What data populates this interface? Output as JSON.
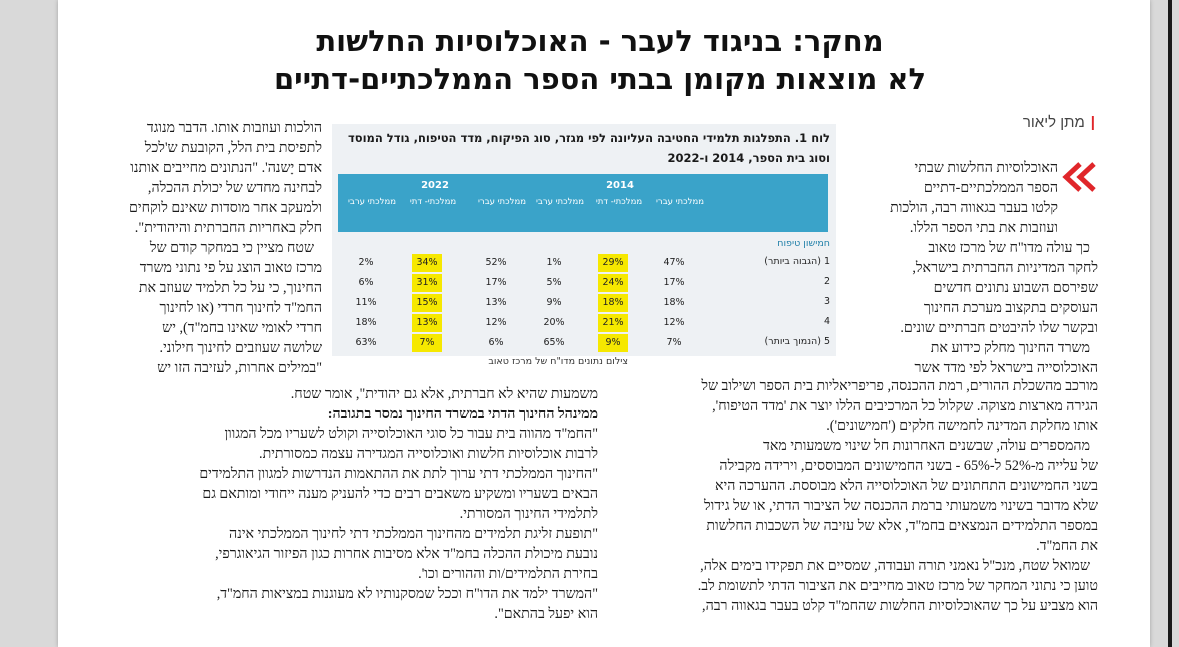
{
  "headline": {
    "line1": "מחקר: בניגוד לעבר - האוכלוסיות החלשות",
    "line2": "לא מוצאות מקומן בבתי הספר הממלכתיים-דתיים"
  },
  "byline": "מתן ליאור",
  "colors": {
    "accent": "#e0262a",
    "table_header": "#3aa3c9",
    "highlight": "#f6e800",
    "table_bg": "#eef1f4"
  },
  "right_column": [
    "האוכלוסיות החלשות שבתי",
    "הספר הממלכתיים-דתיים",
    "קלטו בעבר בגאווה רבה, הולכות",
    "ועוזבות את בתי הספר הללו.",
    "כך עולה מדו\"ח של מרכז טאוב",
    "לחקר המדיניות החברתית בישראל,",
    "שפירסם השבוע נתונים חדשים",
    "העוסקים בתקצוב מערכת החינוך",
    "ובקשר שלו להיבטים חברתיים שונים.",
    "משרד החינוך מחלק כידוע את",
    "האוכלוסייה בישראל לפי מדד אשר"
  ],
  "middle_column": [
    "מורכב מהשכלת ההורים, רמת ההכנסה, פריפריאליות בית הספר ושילוב של",
    "הגירה מארצות מצוקה. שקלול כל המרכיבים הללו יוצר את 'מדד הטיפוח',",
    "אותו מחלקת המדינה לחמישה חלקים ('חמישונים').",
    "מהמספרים עולה, שבשנים האחרונות חל שינוי משמעותי מאד",
    "של עלייה מ-52% ל-65% - בשני החמישונים המבוססים, וירידה מקבילה",
    "בשני החמישונים התחתונים של האוכלוסייה הלא מבוססת. ההערכה היא",
    "שלא מדובר בשינוי משמעותי ברמת ההכנסה של הציבור הדתי, או של גידול",
    "במספר התלמידים הנמצאים בחמ\"ד, אלא של עזיבה של השכבות החלשות",
    "את החמ\"ד.",
    "שמואל שטח, מנכ\"ל נאמני תורה ועבודה, שמסיים את תפקידו בימים אלה,",
    "טוען כי נתוני המחקר של מרכז טאוב מחייבים את הציבור הדתי לתשומת לב.",
    "הוא מצביע על כך שהאוכלוסיות החלשות שהחמ\"ד קלט בעבר בגאווה רבה,"
  ],
  "left_column_top": [
    "הולכות ועוזבות אותו. הדבר מנוגד",
    "לתפיסת בית הלל, הקובעת ש'לכל",
    "אדם יָשנה'. \"הנתונים מחייבים אותנו",
    "לבחינה מחדש של יכולת ההכלה,",
    "ולמעקב אחר מוסדות שאינם לוקחים",
    "חלק באחריות החברתית והיהודית\".",
    "שטח מציין כי במחקר קודם של",
    "מרכז טאוב הוצג על פי נתוני משרד",
    "החינוך, כי על כל תלמיד שעוזב את",
    "החמ\"ד לחינוך חרדי (או לחינוך",
    "חרדי לאומי שאינו בחמ\"ד), יש",
    "שלושה שעוזבים לחינוך חילוני.",
    "\"במילים אחרות, לעזיבה הזו יש"
  ],
  "bottom_block": [
    "משמעות שהיא לא חברתית, אלא גם יהודית\", אומר שטח.",
    "ממינהל החינוך הדתי במשרד החינוך נמסר בתגובה:",
    "\"החמ\"ד מהווה בית עבור כל סוגי האוכלוסייה וקולט לשעריו מכל המגוון",
    "לרבות אוכלוסיות חלשות ואוכלוסייה המגדירה עצמה כמסורתית.",
    "\"החינוך הממלכתי דתי ערוך לתת את ההתאמות הנדרשות למגוון התלמידים",
    "הבאים בשעריו ומשקיע משאבים רבים כדי להעניק מענה ייחודי ומותאם גם",
    "לתלמידי החינוך המסורתי.",
    "\"תופעת זליגת תלמידים מהחינוך הממלכתי דתי לחינוך הממלכתי אינה",
    "נובעת מיכולת ההכלה בחמ\"ד אלא מסיבות אחרות כגון הפיזור הגיאוגרפי,",
    "בחירת התלמידים/ות וההורים וכו'.",
    "\"המשרד ילמד את הדו\"ח וככל שמסקנותיו לא מעוגנות במציאות החמ\"ד,",
    "הוא יפעל בהתאם\"."
  ],
  "table": {
    "caption": "לוח 1. התפלגות תלמידי החטיבה העליונה לפי מגזר, סוג הפיקוח, מדד הטיפוח, גודל המוסד וסוג בית הספר, 2014 ו-2022",
    "year_2014": "2014",
    "year_2022": "2022",
    "col_headers": [
      "ממלכתי עברי",
      "ממלכתי- דתי",
      "ממלכתי ערבי"
    ],
    "section_label": "חמישון טיפוח",
    "rows": [
      {
        "label": "1 (הגבוה ביותר)",
        "y2014": [
          "47%",
          "29%",
          "1%"
        ],
        "y2022": [
          "52%",
          "34%",
          "2%"
        ]
      },
      {
        "label": "2",
        "y2014": [
          "17%",
          "24%",
          "5%"
        ],
        "y2022": [
          "17%",
          "31%",
          "6%"
        ]
      },
      {
        "label": "3",
        "y2014": [
          "18%",
          "18%",
          "9%"
        ],
        "y2022": [
          "13%",
          "15%",
          "11%"
        ]
      },
      {
        "label": "4",
        "y2014": [
          "12%",
          "21%",
          "20%"
        ],
        "y2022": [
          "12%",
          "13%",
          "18%"
        ]
      },
      {
        "label": "5 (הנמוך ביותר)",
        "y2014": [
          "7%",
          "9%",
          "65%"
        ],
        "y2022": [
          "6%",
          "7%",
          "63%"
        ]
      }
    ],
    "source": "צילום נתונים מדו\"ח של מרכז טאוב"
  }
}
